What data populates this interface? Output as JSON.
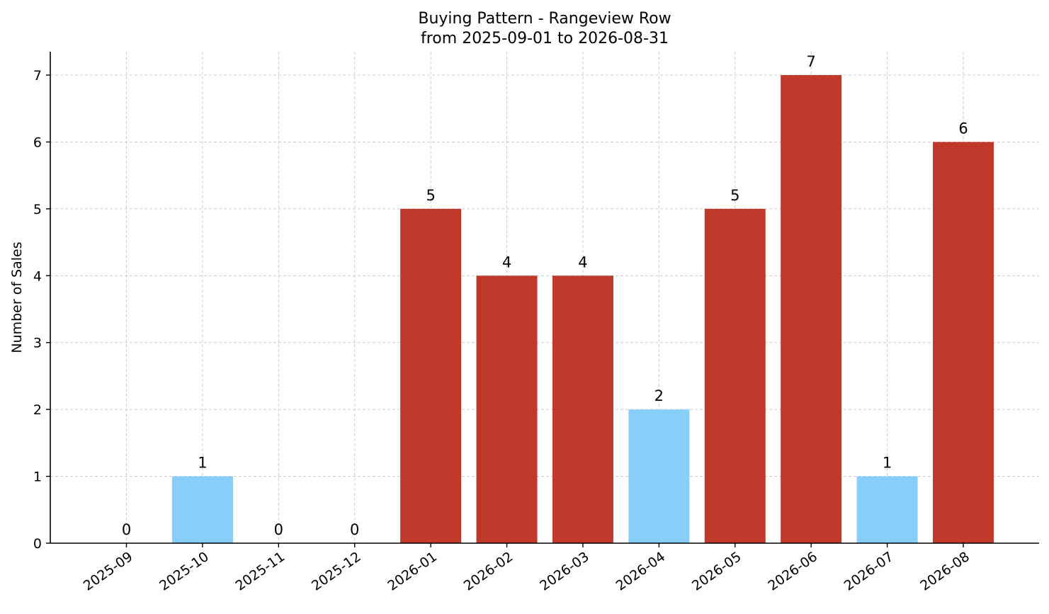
{
  "chart_data": {
    "type": "bar",
    "title": "Buying Pattern - Rangeview Row",
    "subtitle": "from 2025-09-01 to 2026-08-31",
    "xlabel": "",
    "ylabel": "Number of Sales",
    "categories": [
      "2025-09",
      "2025-10",
      "2025-11",
      "2025-12",
      "2026-01",
      "2026-02",
      "2026-03",
      "2026-04",
      "2026-05",
      "2026-06",
      "2026-07",
      "2026-08"
    ],
    "values": [
      0,
      1,
      0,
      0,
      5,
      4,
      4,
      2,
      5,
      7,
      1,
      6
    ],
    "bar_colors": [
      "#c0392b",
      "#87cefa",
      "#c0392b",
      "#c0392b",
      "#c0392b",
      "#c0392b",
      "#c0392b",
      "#87cefa",
      "#c0392b",
      "#c0392b",
      "#87cefa",
      "#c0392b"
    ],
    "y_ticks": [
      0,
      1,
      2,
      3,
      4,
      5,
      6,
      7
    ],
    "ylim": [
      0,
      7.35
    ],
    "grid": true,
    "legend": "none"
  }
}
